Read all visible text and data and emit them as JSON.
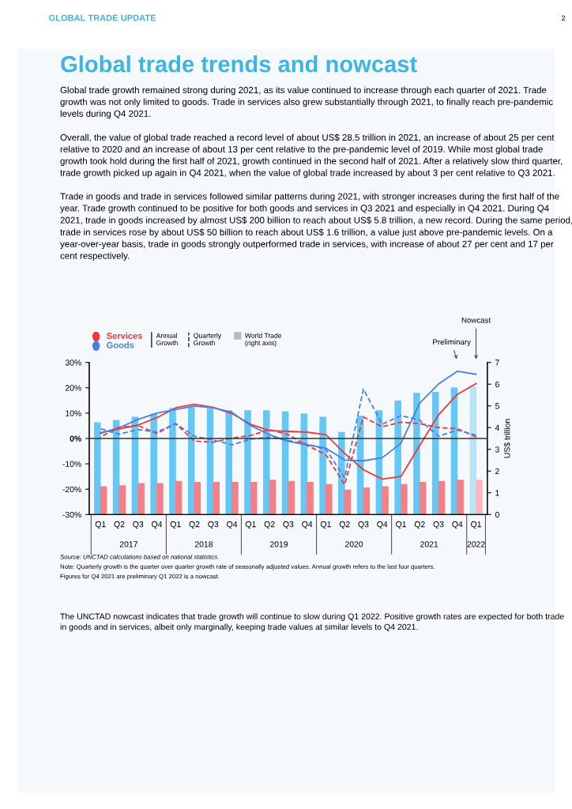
{
  "chart_data": {
    "type": "bar",
    "title": "Global trade trends and nowcast",
    "subtitle": "Global trade growth remained strong during 2021, as its value continued to increase through each quarter of 2021. Trade growth was not only limited to goods. Trade in services also grew substantially through 2021, to finally reach pre-pandemic levels during Q4 2021.\n\nOverall, the value of global trade reached a record level of about US$ 28.5 trillion in 2021, an increase of about 25 per cent relative to 2020 and an increase of about 13 per cent relative to the pre-pandemic level of 2019. While most global trade growth took hold during the first half of 2021, growth continued in the second half of 2021. After a relatively slow third quarter, trade growth picked up again in Q4 2021, when the value of global trade increased by about 3 per cent relative to Q3 2021.\n\nTrade in goods and trade in services followed similar patterns during 2021, with stronger increases during the first half of the year. Trade growth continued to be positive for both goods and services in Q3 2021 and especially in Q4 2021. During Q4 2021, trade in goods increased by almost US$ 200 billion to reach about US$ 5.8 trillion, a new record. During the same period, trade in services rose by about US$ 50 billion to reach about US$ 1.6 trillion, a value just above pre-pandemic levels. On a year-over-year basis, trade in goods strongly outperformed trade in services, with increase of about 27 per cent and 17 per cent respectively.",
    "y2label": "US$ trillion",
    "categories": [
      "Q1",
      "Q2",
      "Q3",
      "Q4",
      "Q1",
      "Q2",
      "Q3",
      "Q4",
      "Q1",
      "Q2",
      "Q3",
      "Q4",
      "Q1",
      "Q2",
      "Q3",
      "Q4",
      "Q1",
      "Q2",
      "Q3",
      "Q4",
      "Q1"
    ],
    "series": [
      {
        "axis": "y2",
        "colors": [
          "#63c8f5",
          "#63c8f5",
          "#63c8f5",
          "#63c8f5",
          "#63c8f5",
          "#63c8f5",
          "#63c8f5",
          "#63c8f5",
          "#63c8f5",
          "#63c8f5",
          "#63c8f5",
          "#63c8f5",
          "#63c8f5",
          "#63c8f5",
          "#63c8f5",
          "#63c8f5",
          "#63c8f5",
          "#63c8f5",
          "#63c8f5",
          "#63c8f5",
          "#b8e4f9"
        ],
        "values": [
          4.25,
          4.35,
          4.5,
          4.65,
          4.9,
          4.95,
          4.9,
          4.8,
          4.8,
          4.8,
          4.75,
          4.65,
          4.5,
          3.8,
          4.55,
          4.8,
          5.25,
          5.6,
          5.65,
          5.85,
          5.9
        ]
      },
      {
        "axis": "y2",
        "colors": [
          "#f47f86",
          "#f47f86",
          "#f47f86",
          "#f47f86",
          "#f47f86",
          "#f47f86",
          "#f47f86",
          "#f47f86",
          "#f47f86",
          "#f47f86",
          "#f47f86",
          "#f47f86",
          "#f47f86",
          "#f47f86",
          "#f47f86",
          "#f47f86",
          "#f47f86",
          "#f47f86",
          "#f47f86",
          "#f47f86",
          "#f9b8bd"
        ],
        "values": [
          1.3,
          1.35,
          1.45,
          1.45,
          1.55,
          1.5,
          1.5,
          1.5,
          1.5,
          1.6,
          1.55,
          1.5,
          1.4,
          1.15,
          1.25,
          1.3,
          1.4,
          1.5,
          1.55,
          1.6,
          1.6
        ]
      },
      {
        "type": "line",
        "name": "Services",
        "color": "#f0373c",
        "line_style": "solid",
        "values": [
          2.3,
          3.8,
          5.3,
          8.2,
          12.1,
          13.5,
          12.3,
          9.8,
          5.6,
          3.1,
          2.8,
          2.5,
          1.5,
          -5.9,
          -12.3,
          -16.0,
          -15.0,
          -2.7,
          9.3,
          17.4,
          21.7
        ]
      },
      {
        "type": "line",
        "name": "Goods",
        "color": "#4a7fe6",
        "line_style": "solid",
        "values": [
          2.0,
          4.3,
          7.5,
          10.0,
          11.4,
          12.8,
          12.1,
          10.3,
          5.1,
          1.5,
          -1.1,
          -2.5,
          -3.8,
          -8.5,
          -8.8,
          -7.6,
          -1.9,
          14.0,
          21.5,
          26.5,
          25.3
        ]
      },
      {
        "type": "line",
        "color": "#f0373c",
        "line_style": "dashed",
        "values": [
          0.6,
          4.4,
          5.1,
          2.0,
          5.8,
          -1.0,
          -1.5,
          0.2,
          1.2,
          3.5,
          1.5,
          -2.7,
          -6.4,
          -18.2,
          8.5,
          4.6,
          6.4,
          5.9,
          4.3,
          3.9,
          0.6
        ]
      },
      {
        "type": "line",
        "color": "#4a7fe6",
        "line_style": "dashed",
        "values": [
          3.8,
          1.7,
          3.5,
          2.5,
          5.9,
          0.9,
          -0.6,
          -2.5,
          -0.3,
          0.6,
          -0.8,
          -2.2,
          -4.3,
          -15.5,
          19.5,
          5.6,
          9.0,
          7.2,
          0.9,
          3.3,
          1.3
        ]
      }
    ],
    "ylim": [
      -30,
      30
    ],
    "yticks": [
      {
        "value": 30,
        "label": "30%"
      },
      {
        "value": 20,
        "label": "20%"
      },
      {
        "value": 10,
        "label": "10%"
      },
      {
        "value": 0,
        "label": "0%"
      },
      {
        "value": -10,
        "label": "-10%"
      },
      {
        "value": -20,
        "label": "-20%"
      },
      {
        "value": -30,
        "label": "-30%"
      }
    ],
    "y2lim": [
      0,
      7
    ],
    "y2ticks": [
      0,
      1,
      2,
      3,
      4,
      5,
      6,
      7
    ],
    "ref_lines": [
      {
        "axis": "y",
        "value": 0,
        "color": "#333333"
      }
    ],
    "legend": "top left",
    "annotations": [
      "GLOBAL TRADE UPDATE",
      "2",
      "Annual Growth",
      "Quarterly Growth",
      "World Trade (right axis)",
      "Preliminary",
      "Nowcast",
      "2017",
      "2018",
      "2019",
      "2020",
      "2021",
      "2022",
      "Source: UNCTAD calculations based on national statistics.",
      "Note: Quarterly growth is the quarter over quarter growth rate of seasonally adjusted values. Annual growth refers to the last four quarters.",
      "Figures for Q4 2021 are preliminary Q1 2022 is a nowcast.",
      "The UNCTAD nowcast indicates that trade growth will continue to slow during Q1 2022. Positive growth rates are expected for both trade in goods and in services, albeit only marginally, keeping trade values at similar levels to Q4 2021."
    ]
  }
}
